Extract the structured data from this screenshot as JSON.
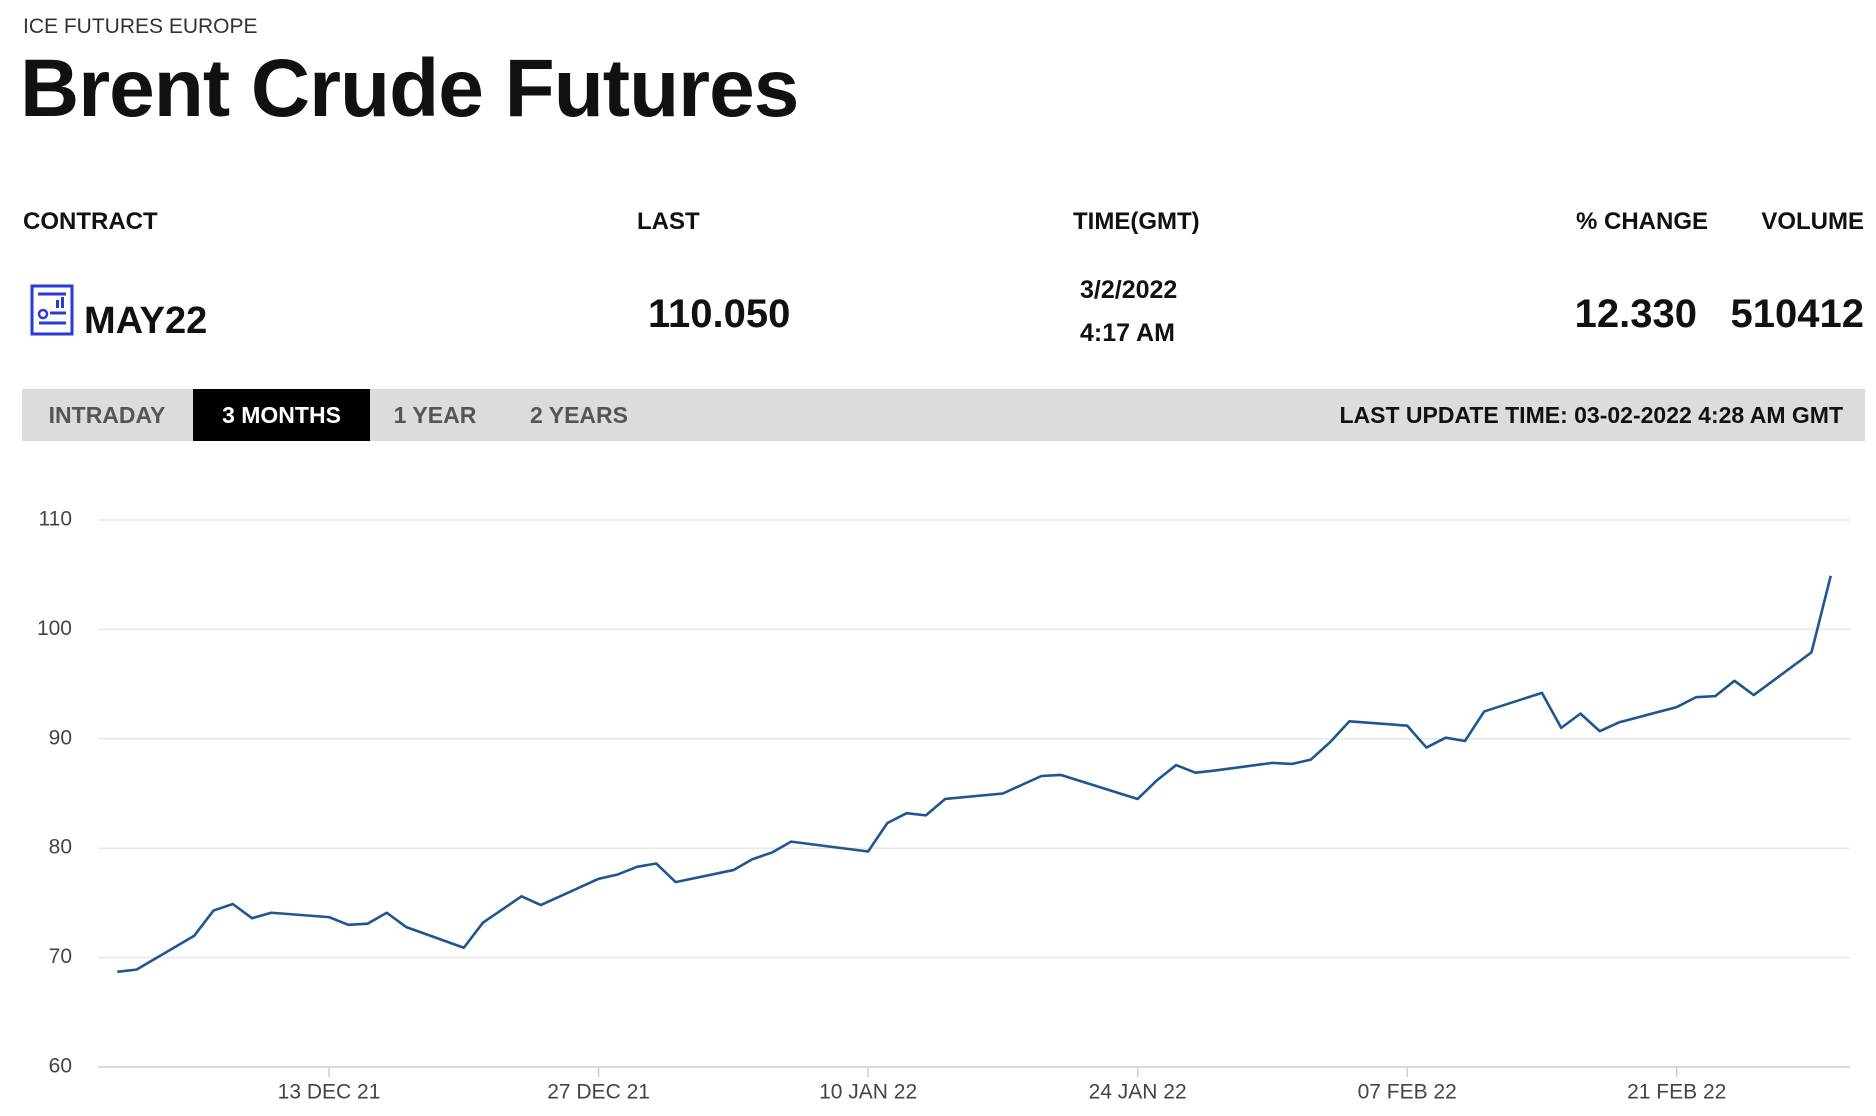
{
  "header": {
    "exchange": "ICE FUTURES EUROPE",
    "title": "Brent Crude Futures"
  },
  "table": {
    "columns": [
      "CONTRACT",
      "LAST",
      "TIME(GMT)",
      "% CHANGE",
      "VOLUME"
    ],
    "row": {
      "contract": "MAY22",
      "last": "110.050",
      "date": "3/2/2022",
      "time": "4:17 AM",
      "change": "12.330",
      "volume": "510412"
    }
  },
  "tabs": {
    "items": [
      "INTRADAY",
      "3 MONTHS",
      "1 YEAR",
      "2 YEARS"
    ],
    "active": 1,
    "last_update": "LAST UPDATE TIME: 03-02-2022 4:28 AM GMT"
  },
  "chart_data": {
    "type": "line",
    "color": "#1f5591",
    "grid": true,
    "x": [
      "2021-12-02",
      "2021-12-03",
      "2021-12-06",
      "2021-12-07",
      "2021-12-08",
      "2021-12-09",
      "2021-12-10",
      "2021-12-13",
      "2021-12-14",
      "2021-12-15",
      "2021-12-16",
      "2021-12-17",
      "2021-12-20",
      "2021-12-21",
      "2021-12-22",
      "2021-12-23",
      "2021-12-24",
      "2021-12-27",
      "2021-12-28",
      "2021-12-29",
      "2021-12-30",
      "2021-12-31",
      "2022-01-03",
      "2022-01-04",
      "2022-01-05",
      "2022-01-06",
      "2022-01-10",
      "2022-01-11",
      "2022-01-12",
      "2022-01-13",
      "2022-01-14",
      "2022-01-17",
      "2022-01-18",
      "2022-01-19",
      "2022-01-20",
      "2022-01-24",
      "2022-01-25",
      "2022-01-26",
      "2022-01-27",
      "2022-01-28",
      "2022-01-31",
      "2022-02-01",
      "2022-02-02",
      "2022-02-03",
      "2022-02-04",
      "2022-02-07",
      "2022-02-08",
      "2022-02-09",
      "2022-02-10",
      "2022-02-11",
      "2022-02-14",
      "2022-02-15",
      "2022-02-16",
      "2022-02-17",
      "2022-02-18",
      "2022-02-21",
      "2022-02-22",
      "2022-02-23",
      "2022-02-24",
      "2022-02-25",
      "2022-02-28",
      "2022-03-01"
    ],
    "values": [
      68.7,
      68.9,
      72.0,
      74.3,
      74.9,
      73.6,
      74.1,
      73.7,
      73.0,
      73.1,
      74.1,
      72.8,
      70.9,
      73.2,
      74.4,
      75.6,
      74.8,
      77.2,
      77.6,
      78.3,
      78.6,
      76.9,
      78.0,
      79.0,
      79.6,
      80.6,
      79.7,
      82.3,
      83.2,
      83.0,
      84.5,
      85.0,
      85.8,
      86.6,
      86.7,
      84.5,
      86.2,
      87.6,
      86.9,
      87.1,
      87.8,
      87.7,
      88.1,
      89.7,
      91.6,
      91.2,
      89.2,
      90.1,
      89.8,
      92.5,
      94.2,
      91.0,
      92.3,
      90.7,
      91.5,
      92.9,
      93.8,
      93.9,
      95.3,
      94.0,
      97.9,
      104.9
    ],
    "xlim": [
      "2021-12-01",
      "2022-03-02"
    ],
    "xticks": [
      {
        "value": "2021-12-13",
        "label": "13 DEC 21"
      },
      {
        "value": "2021-12-27",
        "label": "27 DEC 21"
      },
      {
        "value": "2022-01-10",
        "label": "10 JAN 22"
      },
      {
        "value": "2022-01-24",
        "label": "24 JAN 22"
      },
      {
        "value": "2022-02-07",
        "label": "07 FEB 22"
      },
      {
        "value": "2022-02-21",
        "label": "21 FEB 22"
      }
    ],
    "ylim": [
      60,
      110
    ],
    "yticks": [
      60,
      70,
      80,
      90,
      100,
      110
    ]
  }
}
